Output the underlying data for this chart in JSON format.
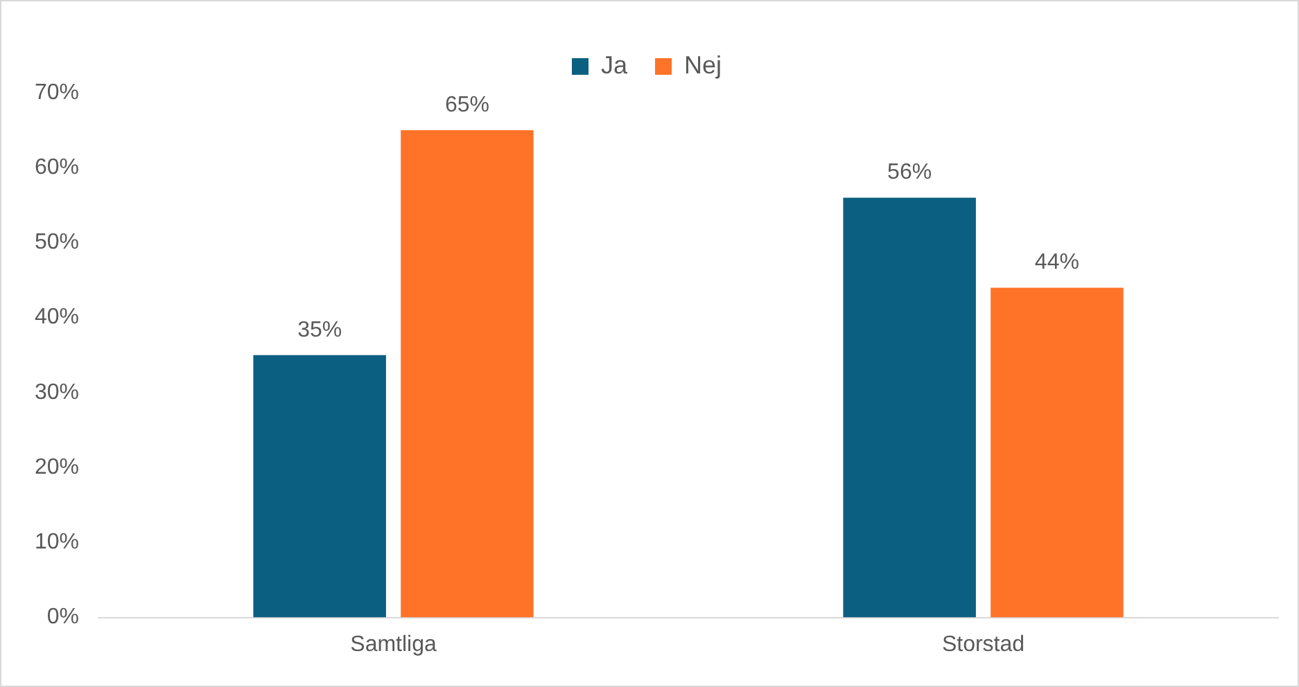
{
  "chart_data": {
    "type": "bar",
    "categories": [
      "Samtliga",
      "Storstad"
    ],
    "series": [
      {
        "name": "Ja",
        "color": "#0b5f80",
        "values": [
          35,
          56
        ],
        "value_labels": [
          "35%",
          "56%"
        ]
      },
      {
        "name": "Nej",
        "color": "#ff7328",
        "values": [
          65,
          44
        ],
        "value_labels": [
          "65%",
          "44%"
        ]
      }
    ],
    "ylim": [
      0,
      70
    ],
    "yticks": [
      {
        "value": 0,
        "label": "0%"
      },
      {
        "value": 10,
        "label": "10%"
      },
      {
        "value": 20,
        "label": "20%"
      },
      {
        "value": 30,
        "label": "30%"
      },
      {
        "value": 40,
        "label": "40%"
      },
      {
        "value": 50,
        "label": "50%"
      },
      {
        "value": 60,
        "label": "60%"
      },
      {
        "value": 70,
        "label": "70%"
      }
    ],
    "grid": false,
    "legend": "top"
  }
}
